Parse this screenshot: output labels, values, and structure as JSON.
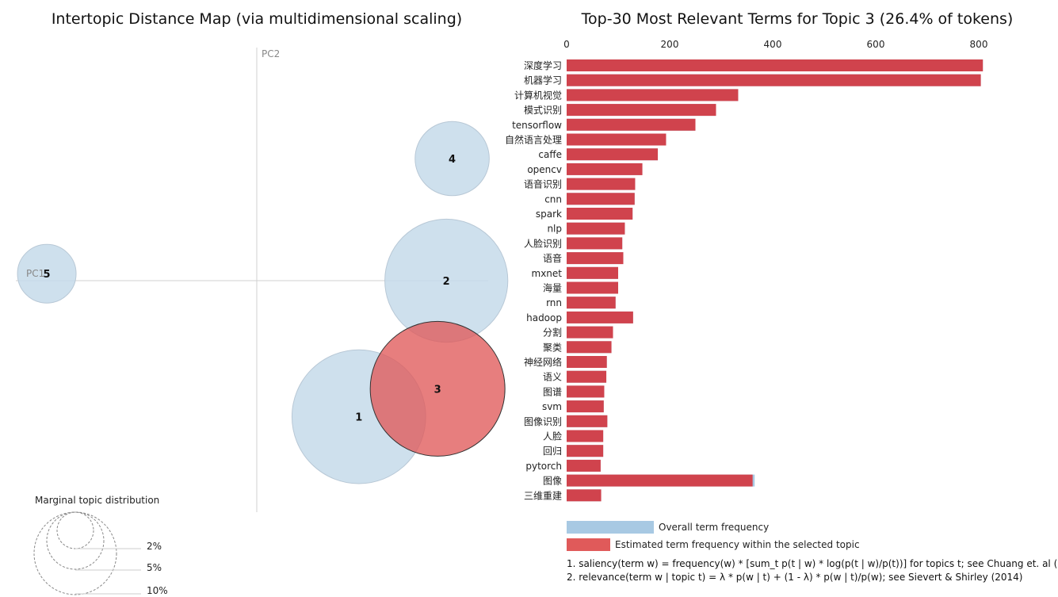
{
  "titles": {
    "left": "Intertopic Distance Map (via multidimensional scaling)",
    "right": "Top-30 Most Relevant Terms for Topic 3 (26.4% of tokens)"
  },
  "axes": {
    "pc1": "PC1",
    "pc2": "PC2"
  },
  "marginal": {
    "title": "Marginal topic distribution",
    "levels": [
      "2%",
      "5%",
      "10%"
    ]
  },
  "legend": {
    "overall": "Overall term frequency",
    "estimated": "Estimated term frequency within the selected topic"
  },
  "notes": [
    "1. saliency(term w) = frequency(w) * [sum_t p(t | w) * log(p(t | w)/p(t))] for topics t; see Chuang et. al (2012)",
    "2. relevance(term w | topic t) = λ * p(w | t) + (1 - λ) * p(w | t)/p(w); see Sievert & Shirley (2014)"
  ],
  "colors": {
    "bubble": "#c6dbea",
    "selected": "#e05a5a",
    "overall_bar": "#a8c9e3",
    "topic_bar": "#d0434d"
  },
  "chart_data": [
    {
      "type": "scatter",
      "title": "Intertopic Distance Map (via multidimensional scaling)",
      "xlabel": "PC1",
      "ylabel": "PC2",
      "topics": [
        {
          "id": "1",
          "x": 0.35,
          "y": -0.39,
          "size_pct": 26,
          "selected": false
        },
        {
          "id": "2",
          "x": 0.65,
          "y": 0.0,
          "size_pct": 22,
          "selected": false
        },
        {
          "id": "3",
          "x": 0.62,
          "y": -0.31,
          "size_pct": 26.4,
          "selected": true
        },
        {
          "id": "4",
          "x": 0.67,
          "y": 0.35,
          "size_pct": 8,
          "selected": false
        },
        {
          "id": "5",
          "x": -0.72,
          "y": 0.02,
          "size_pct": 5,
          "selected": false
        }
      ]
    },
    {
      "type": "bar",
      "title": "Top-30 Most Relevant Terms for Topic 3 (26.4% of tokens)",
      "xlim": [
        0,
        800
      ],
      "xticks": [
        0,
        200,
        400,
        600,
        800
      ],
      "terms": [
        "深度学习",
        "机器学习",
        "计算机视觉",
        "模式识别",
        "tensorflow",
        "自然语言处理",
        "caffe",
        "opencv",
        "语音识别",
        "cnn",
        "spark",
        "nlp",
        "人脸识别",
        "语音",
        "mxnet",
        "海量",
        "rnn",
        "hadoop",
        "分割",
        "聚类",
        "神经网络",
        "语义",
        "图谱",
        "svm",
        "图像识别",
        "人脸",
        "回归",
        "pytorch",
        "图像",
        "三维重建"
      ],
      "series": [
        {
          "name": "Overall term frequency",
          "values": [
            808,
            804,
            333,
            290,
            250,
            193,
            177,
            147,
            133,
            132,
            128,
            113,
            108,
            110,
            100,
            100,
            95,
            129,
            90,
            87,
            78,
            77,
            73,
            72,
            79,
            71,
            71,
            66,
            365,
            67
          ]
        },
        {
          "name": "Estimated term frequency within the selected topic",
          "values": [
            808,
            804,
            333,
            290,
            250,
            193,
            177,
            147,
            133,
            132,
            128,
            113,
            108,
            110,
            100,
            100,
            95,
            129,
            90,
            87,
            78,
            77,
            73,
            72,
            79,
            71,
            71,
            66,
            361,
            67
          ]
        }
      ]
    }
  ]
}
